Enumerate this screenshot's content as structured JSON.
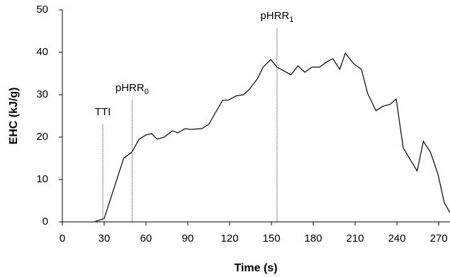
{
  "chart_data": {
    "type": "line",
    "x_label": "Time (s)",
    "y_label": "EHC (kJ/g)",
    "xlim": [
      0,
      279
    ],
    "ylim": [
      0,
      50
    ],
    "xticks": [
      0,
      30,
      60,
      90,
      120,
      150,
      180,
      210,
      240,
      270
    ],
    "yticks": [
      0,
      10,
      20,
      30,
      40,
      50
    ],
    "grid": false,
    "series": [
      {
        "color": "#000000",
        "x": [
          23,
          30,
          44,
          50,
          55,
          60,
          64,
          68,
          73,
          79,
          83,
          88,
          92,
          100,
          105,
          115,
          119,
          124.5,
          130,
          134,
          140,
          144,
          149.5,
          154,
          164,
          169,
          174,
          179,
          184.5,
          189.5,
          194,
          199,
          203,
          209,
          214.5,
          219,
          225,
          230,
          235,
          239.5,
          244.5,
          254.5,
          259,
          264,
          269.5,
          274,
          278
        ],
        "values": [
          0,
          0.8,
          15,
          16.5,
          19.5,
          20.5,
          20.8,
          19.5,
          20,
          21.5,
          21,
          22,
          21.8,
          22,
          23,
          28.7,
          28.7,
          29.7,
          30,
          31.2,
          33.8,
          36.5,
          38.3,
          36.5,
          34.7,
          36.8,
          35.3,
          36.5,
          36.5,
          37.7,
          38.5,
          36,
          39.8,
          37.3,
          36,
          30.3,
          26.2,
          27.3,
          27.7,
          29,
          17.5,
          12,
          19,
          16.5,
          11.2,
          4.5,
          2.2
        ]
      }
    ],
    "annotations": [
      {
        "text": "TTI",
        "x": 29,
        "y": 23
      },
      {
        "text": "pHRR",
        "sub": "0",
        "x": 50,
        "y": 28.7
      },
      {
        "text": "pHRR",
        "sub": "1",
        "x": 154,
        "y": 45.7
      }
    ]
  }
}
